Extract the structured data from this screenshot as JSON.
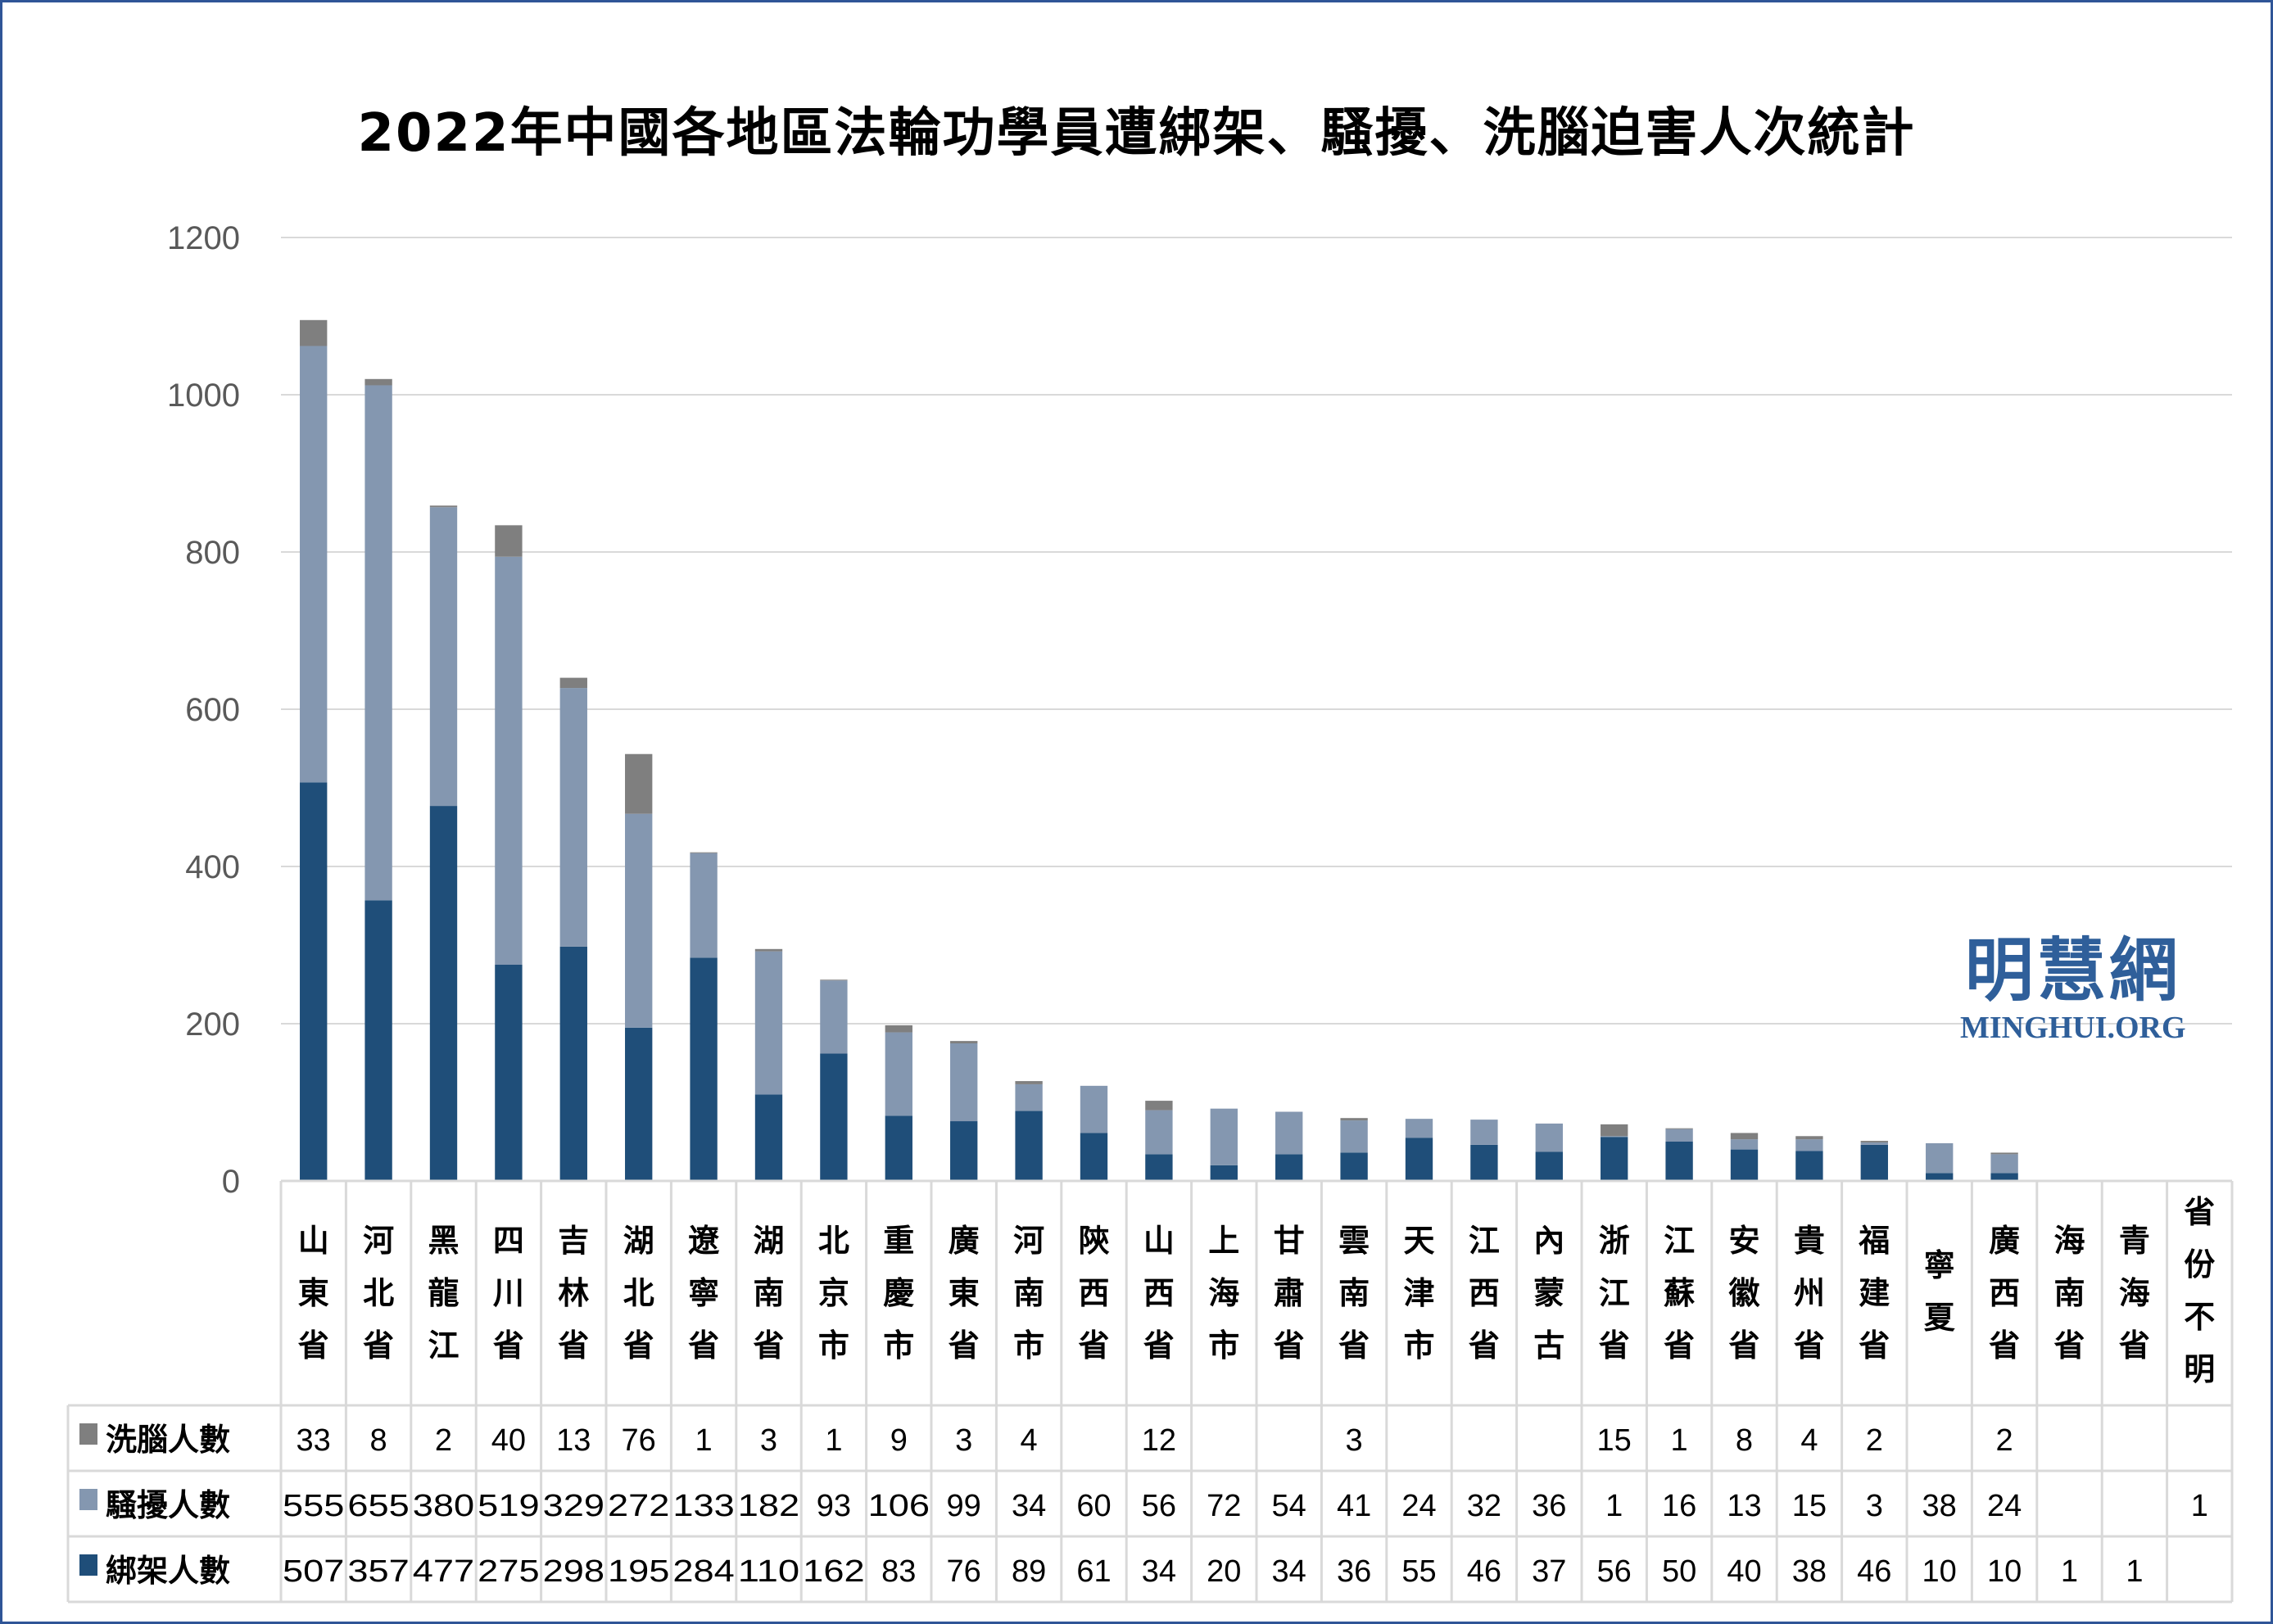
{
  "chart_data": {
    "type": "bar",
    "stacked": true,
    "title": "2022年中國各地區法輪功學員遭綁架、騷擾、洗腦迫害人次統計",
    "categories": [
      "山東省",
      "河北省",
      "黑龍江",
      "四川省",
      "吉林省",
      "湖北省",
      "遼寧省",
      "湖南省",
      "北京市",
      "重慶市",
      "廣東省",
      "河南市",
      "陝西省",
      "山西省",
      "上海市",
      "甘肅省",
      "雲南省",
      "天津市",
      "江西省",
      "內蒙古",
      "浙江省",
      "江蘇省",
      "安徽省",
      "貴州省",
      "福建省",
      "寧夏",
      "廣西省",
      "海南省",
      "青海省",
      "省份不明"
    ],
    "series": [
      {
        "name": "綁架人數",
        "color": "#1f4e79",
        "values": [
          507,
          357,
          477,
          275,
          298,
          195,
          284,
          110,
          162,
          83,
          76,
          89,
          61,
          34,
          20,
          34,
          36,
          55,
          46,
          37,
          56,
          50,
          40,
          38,
          46,
          10,
          10,
          1,
          1,
          null
        ]
      },
      {
        "name": "騷擾人數",
        "color": "#8497b0",
        "values": [
          555,
          655,
          380,
          519,
          329,
          272,
          133,
          182,
          93,
          106,
          99,
          34,
          60,
          56,
          72,
          54,
          41,
          24,
          32,
          36,
          1,
          16,
          13,
          15,
          3,
          38,
          24,
          null,
          null,
          1
        ]
      },
      {
        "name": "洗腦人數",
        "color": "#7f7f7f",
        "values": [
          33,
          8,
          2,
          40,
          13,
          76,
          1,
          3,
          1,
          9,
          3,
          4,
          null,
          12,
          null,
          null,
          3,
          null,
          null,
          null,
          15,
          1,
          8,
          4,
          2,
          null,
          2,
          null,
          null,
          null
        ]
      }
    ],
    "yticks": [
      0,
      200,
      400,
      600,
      800,
      1000,
      1200
    ],
    "ylim": [
      0,
      1200
    ],
    "grid": true,
    "legend": "data-table"
  },
  "watermark": {
    "cn": "明慧網",
    "en": "MINGHUI.ORG"
  }
}
